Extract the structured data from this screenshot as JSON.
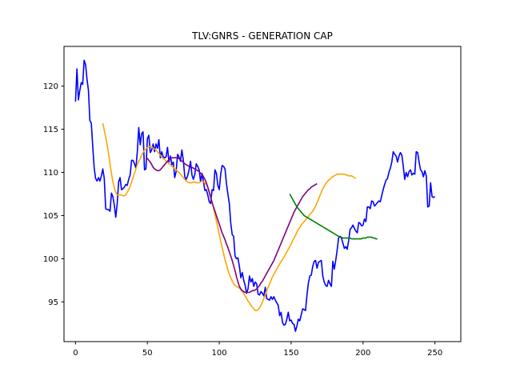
{
  "chart_data": {
    "type": "line",
    "title": "TLV:GNRS - GENERATION CAP",
    "xlabel": "",
    "ylabel": "",
    "xlim": [
      -8,
      268
    ],
    "ylim": [
      90.4,
      124.6
    ],
    "xticks": [
      0,
      50,
      100,
      150,
      200,
      250
    ],
    "yticks": [
      95,
      100,
      105,
      110,
      115,
      120
    ],
    "grid": false,
    "series": [
      {
        "color": "#0000ff",
        "x_start": 0,
        "values": [
          118.2,
          122.0,
          118.4,
          119.5,
          120.4,
          120.2,
          123.0,
          122.5,
          120.8,
          119.5,
          116.0,
          115.7,
          113.0,
          110.5,
          109.3,
          109.0,
          109.4,
          109.0,
          109.6,
          110.4,
          109.3,
          105.8,
          105.7,
          105.7,
          105.5,
          107.6,
          107.2,
          106.2,
          104.8,
          106.4,
          108.9,
          109.4,
          108.0,
          108.1,
          108.3,
          108.6,
          108.5,
          109.2,
          109.7,
          111.4,
          111.4,
          111.0,
          110.5,
          112.4,
          115.2,
          113.2,
          114.5,
          114.7,
          110.3,
          110.4,
          113.9,
          114.3,
          112.3,
          112.6,
          113.3,
          112.4,
          113.3,
          112.8,
          113.8,
          111.7,
          112.4,
          111.8,
          111.7,
          111.8,
          112.9,
          111.2,
          111.9,
          110.9,
          111.2,
          109.4,
          110.1,
          112.1,
          111.8,
          111.3,
          112.6,
          111.4,
          109.5,
          109.2,
          109.6,
          110.3,
          111.3,
          109.7,
          109.2,
          109.8,
          111.0,
          110.7,
          110.3,
          108.9,
          109.9,
          108.9,
          107.9,
          108.0,
          107.4,
          106.6,
          106.4,
          108.0,
          107.9,
          110.3,
          109.9,
          108.5,
          108.0,
          109.8,
          110.8,
          110.7,
          110.4,
          108.7,
          107.5,
          106.4,
          104.1,
          102.8,
          102.6,
          100.3,
          100.0,
          100.1,
          99.1,
          97.8,
          98.4,
          97.5,
          96.9,
          96.0,
          96.5,
          98.0,
          97.3,
          97.7,
          96.8,
          97.3,
          97.1,
          95.9,
          95.8,
          96.2,
          96.0,
          95.7,
          96.7,
          95.4,
          95.3,
          95.2,
          95.6,
          95.3,
          95.6,
          95.2,
          94.9,
          94.6,
          93.4,
          93.8,
          92.6,
          92.3,
          92.4,
          93.0,
          93.8,
          92.8,
          92.9,
          92.5,
          92.4,
          91.6,
          92.2,
          93.0,
          92.8,
          93.5,
          94.2,
          94.1,
          94.0,
          95.8,
          97.2,
          98.0,
          98.1,
          99.1,
          99.7,
          99.8,
          98.9,
          99.6,
          99.7,
          99.8,
          98.0,
          97.3,
          96.9,
          96.8,
          97.5,
          97.1,
          96.8,
          99.7,
          98.8,
          99.8,
          101.0,
          102.4,
          102.6,
          102.4,
          101.8,
          101.2,
          101.4,
          101.1,
          102.1,
          103.4,
          103.6,
          103.9,
          103.5,
          103.2,
          103.0,
          104.2,
          104.1,
          103.8,
          103.9,
          104.6,
          104.3,
          106.0,
          106.0,
          105.8,
          106.7,
          106.6,
          106.1,
          106.3,
          106.5,
          106.7,
          106.6,
          107.3,
          108.0,
          108.6,
          109.1,
          109.3,
          110.0,
          110.5,
          111.2,
          112.4,
          112.1,
          111.9,
          111.2,
          111.9,
          112.3,
          112.0,
          110.7,
          109.2,
          110.0,
          109.5,
          110.1,
          110.3,
          109.7,
          109.9,
          109.8,
          112.4,
          112.3,
          111.2,
          110.3,
          110.1,
          109.5,
          110.2,
          109.6,
          106.0,
          106.1,
          108.8,
          107.2,
          107.1,
          107.2
        ]
      },
      {
        "color": "#ffa500",
        "x_start": 19,
        "values": [
          115.7,
          114.9,
          114.1,
          113.2,
          112.2,
          111.0,
          109.9,
          108.9,
          108.2,
          107.7,
          107.4,
          107.4,
          107.4,
          107.4,
          107.3,
          107.3,
          107.4,
          107.7,
          108.0,
          108.4,
          108.9,
          109.4,
          109.9,
          110.4,
          110.9,
          111.3,
          111.6,
          112.0,
          112.3,
          112.6,
          112.7,
          112.9,
          113.0,
          113.0,
          113.0,
          112.8,
          112.7,
          112.6,
          112.4,
          112.2,
          112.0,
          111.8,
          111.6,
          111.5,
          111.3,
          111.2,
          111.0,
          110.9,
          110.7,
          110.6,
          110.4,
          110.3,
          110.1,
          110.0,
          109.8,
          109.6,
          109.4,
          109.2,
          109.0,
          108.9,
          108.8,
          108.8,
          108.8,
          108.9,
          108.9,
          108.8,
          108.8,
          108.8,
          108.9,
          109.0,
          108.9,
          108.8,
          108.6,
          108.3,
          107.8,
          107.2,
          106.6,
          105.9,
          105.1,
          104.4,
          103.6,
          102.8,
          102.0,
          101.3,
          100.6,
          99.9,
          99.3,
          98.7,
          98.2,
          97.8,
          97.4,
          97.1,
          96.9,
          96.8,
          96.7,
          96.6,
          96.4,
          96.2,
          96.0,
          95.7,
          95.4,
          95.1,
          94.9,
          94.6,
          94.4,
          94.2,
          94.0,
          94.0,
          94.1,
          94.3,
          94.6,
          95.0,
          95.4,
          95.8,
          96.3,
          96.7,
          97.1,
          97.5,
          97.9,
          98.2,
          98.5,
          98.8,
          99.1,
          99.4,
          99.7,
          99.9,
          100.2,
          100.5,
          100.8,
          101.1,
          101.4,
          101.7,
          102.1,
          102.4,
          102.7,
          103.1,
          103.4,
          103.6,
          103.9,
          104.1,
          104.3,
          104.5,
          104.7,
          104.9,
          105.1,
          105.3,
          105.5,
          105.8,
          106.1,
          106.5,
          106.9,
          107.3,
          107.7,
          108.1,
          108.4,
          108.7,
          108.9,
          109.1,
          109.2,
          109.4,
          109.5,
          109.6,
          109.7,
          109.8,
          109.8,
          109.8,
          109.8,
          109.8,
          109.8,
          109.7,
          109.7,
          109.6,
          109.6,
          109.6,
          109.5,
          109.4,
          109.3
        ]
      },
      {
        "color": "#800080",
        "x_start": 49,
        "values": [
          111.8,
          111.6,
          111.4,
          111.2,
          110.9,
          110.6,
          110.4,
          110.3,
          110.2,
          110.2,
          110.3,
          110.5,
          110.7,
          110.9,
          111.1,
          111.3,
          111.5,
          111.6,
          111.7,
          111.7,
          111.7,
          111.7,
          111.7,
          111.6,
          111.5,
          111.3,
          111.2,
          111.0,
          110.9,
          110.8,
          110.7,
          110.6,
          110.6,
          110.5,
          110.4,
          110.3,
          110.2,
          110.1,
          109.9,
          109.8,
          109.5,
          109.2,
          108.8,
          108.3,
          107.7,
          107.1,
          106.5,
          106.0,
          105.5,
          105.0,
          104.5,
          104.0,
          103.5,
          103.0,
          102.6,
          102.2,
          101.7,
          101.3,
          100.8,
          100.3,
          99.8,
          99.2,
          98.6,
          97.9,
          97.3,
          96.8,
          96.5,
          96.3,
          96.2,
          96.1,
          96.1,
          96.1,
          96.1,
          96.2,
          96.3,
          96.3,
          96.4,
          96.5,
          96.7,
          96.9,
          97.2,
          97.4,
          97.7,
          98.0,
          98.3,
          98.6,
          98.9,
          99.2,
          99.5,
          99.8,
          100.2,
          100.6,
          101.0,
          101.4,
          101.8,
          102.2,
          102.6,
          103.0,
          103.4,
          103.8,
          104.2,
          104.6,
          105.0,
          105.4,
          105.7,
          106.0,
          106.3,
          106.6,
          106.9,
          107.2,
          107.4,
          107.6,
          107.8,
          108.0,
          108.1,
          108.3,
          108.4,
          108.5,
          108.6,
          108.7
        ]
      },
      {
        "color": "#008000",
        "x_start": 149,
        "values": [
          107.5,
          107.2,
          106.9,
          106.6,
          106.3,
          106.0,
          105.8,
          105.6,
          105.4,
          105.2,
          105.0,
          104.9,
          104.8,
          104.7,
          104.6,
          104.5,
          104.4,
          104.3,
          104.2,
          104.1,
          104.0,
          103.9,
          103.8,
          103.7,
          103.6,
          103.5,
          103.4,
          103.3,
          103.2,
          103.1,
          103.0,
          102.9,
          102.8,
          102.7,
          102.6,
          102.5,
          102.5,
          102.4,
          102.4,
          102.4,
          102.4,
          102.4,
          102.4,
          102.3,
          102.3,
          102.3,
          102.3,
          102.3,
          102.3,
          102.3,
          102.3,
          102.4,
          102.4,
          102.4,
          102.5,
          102.5,
          102.5,
          102.5,
          102.4,
          102.4,
          102.3,
          102.3
        ]
      }
    ]
  }
}
